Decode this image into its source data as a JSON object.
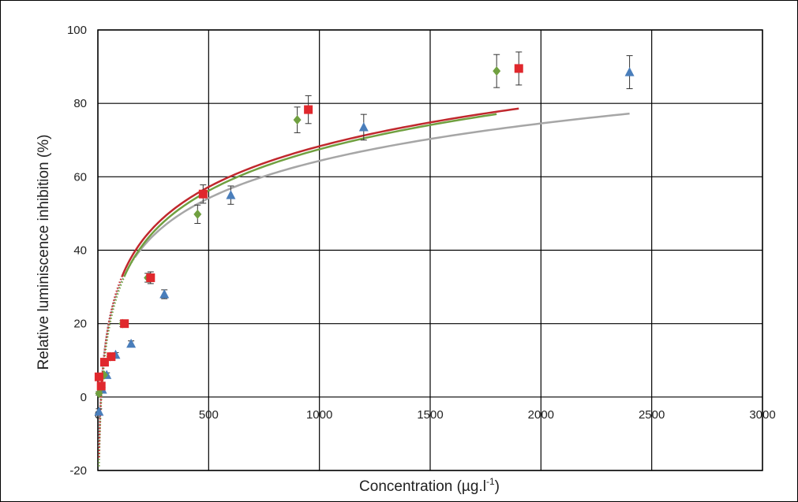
{
  "chart_data": {
    "type": "scatter",
    "title": "",
    "xlabel": "Concentration (µg.l",
    "xlabel_sup": "-1",
    "xlabel_close": ")",
    "ylabel": "Relative luminiscence inhibition (%)",
    "xlim": [
      0,
      3000
    ],
    "ylim": [
      -20,
      100
    ],
    "x_ticks": [
      "0",
      "500",
      "1000",
      "1500",
      "2000",
      "2500",
      "3000"
    ],
    "y_ticks": [
      "-20",
      "0",
      "20",
      "40",
      "60",
      "80",
      "100"
    ],
    "x_tick_values": [
      0,
      500,
      1000,
      1500,
      2000,
      2500,
      3000
    ],
    "y_tick_values": [
      -20,
      0,
      20,
      40,
      60,
      80,
      100
    ],
    "grid": true,
    "legend": false,
    "series": [
      {
        "marker": "triangle",
        "color": "#4a7ebb",
        "points": [
          {
            "x": 5,
            "y": -4,
            "err": 0.8
          },
          {
            "x": 20,
            "y": 2,
            "err": 0.6
          },
          {
            "x": 40,
            "y": 6,
            "err": 0.6
          },
          {
            "x": 80,
            "y": 11.5,
            "err": 0.6
          },
          {
            "x": 150,
            "y": 14.5,
            "err": 0.8
          },
          {
            "x": 300,
            "y": 28,
            "err": 1.2
          },
          {
            "x": 600,
            "y": 55,
            "err": 2.5
          },
          {
            "x": 1200,
            "y": 73.5,
            "err": 3.5
          },
          {
            "x": 2400,
            "y": 88.5,
            "err": 4.5
          }
        ],
        "trend": {
          "color": "#a6a6a6",
          "a": 14.7,
          "b": -37.2,
          "x_start": 20,
          "x_end": 2400,
          "dotted_start": 5,
          "dotted_end": 170
        }
      },
      {
        "marker": "diamond",
        "color": "#70a040",
        "points": [
          {
            "x": 5,
            "y": 1,
            "err": 0.5
          },
          {
            "x": 14,
            "y": 2.5,
            "err": 0.5
          },
          {
            "x": 28,
            "y": 6,
            "err": 0.5
          },
          {
            "x": 56,
            "y": 11,
            "err": 0.5
          },
          {
            "x": 112,
            "y": 20,
            "err": 0.8
          },
          {
            "x": 225,
            "y": 32.5,
            "err": 1.2
          },
          {
            "x": 450,
            "y": 49.8,
            "err": 2.5
          },
          {
            "x": 900,
            "y": 75.5,
            "err": 3.5
          },
          {
            "x": 1800,
            "y": 88.8,
            "err": 4.5
          }
        ],
        "trend": {
          "color": "#70a040",
          "a": 16.3,
          "b": -45.1,
          "x_start": 14,
          "x_end": 1800,
          "dotted_start": 5,
          "dotted_end": 120
        }
      },
      {
        "marker": "square",
        "color": "#e0282d",
        "points": [
          {
            "x": 5,
            "y": 5.5,
            "err": 0.5
          },
          {
            "x": 15,
            "y": 3,
            "err": 0.5
          },
          {
            "x": 30,
            "y": 9.5,
            "err": 0.6
          },
          {
            "x": 60,
            "y": 11,
            "err": 0.6
          },
          {
            "x": 120,
            "y": 20,
            "err": 0.8
          },
          {
            "x": 238,
            "y": 32.5,
            "err": 1.6
          },
          {
            "x": 475,
            "y": 55.3,
            "err": 2.5
          },
          {
            "x": 950,
            "y": 78.3,
            "err": 3.8
          },
          {
            "x": 1900,
            "y": 89.5,
            "err": 4.5
          }
        ],
        "trend": {
          "color": "#c0282d",
          "a": 16.0,
          "b": -42.2,
          "x_start": 15,
          "x_end": 1900,
          "dotted_start": 5,
          "dotted_end": 110
        }
      }
    ]
  }
}
